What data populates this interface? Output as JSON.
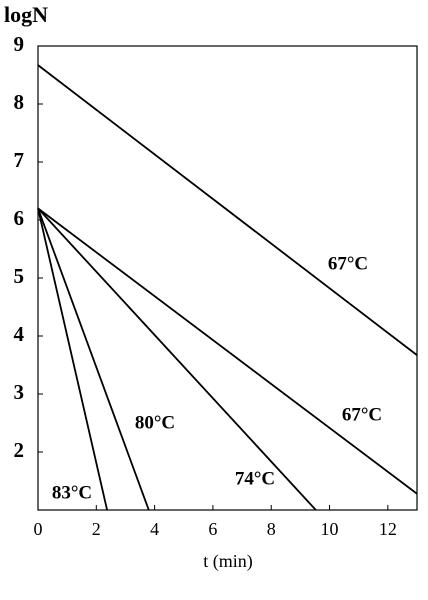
{
  "chart_data": {
    "type": "line",
    "y_label": "logN",
    "x_label": "t (min)",
    "xlim": [
      0,
      13
    ],
    "ylim": [
      1,
      9
    ],
    "xticks": [
      0,
      2,
      4,
      6,
      8,
      10,
      12
    ],
    "yticks": [
      2,
      3,
      4,
      5,
      6,
      7,
      8,
      9
    ],
    "series": [
      {
        "name": "67°C",
        "color": "#000000",
        "x": [
          0,
          13
        ],
        "values": [
          8.67,
          3.67
        ]
      },
      {
        "name": "67°C",
        "color": "#000000",
        "x": [
          0,
          13
        ],
        "values": [
          6.2,
          1.28
        ]
      },
      {
        "name": "74°C",
        "color": "#000000",
        "x": [
          0,
          9.53
        ],
        "values": [
          6.2,
          1
        ]
      },
      {
        "name": "80°C",
        "color": "#000000",
        "x": [
          0,
          3.8
        ],
        "values": [
          6.2,
          1
        ]
      },
      {
        "name": "83°C",
        "color": "#000000",
        "x": [
          0,
          2.37
        ],
        "values": [
          6.2,
          1
        ]
      }
    ]
  }
}
